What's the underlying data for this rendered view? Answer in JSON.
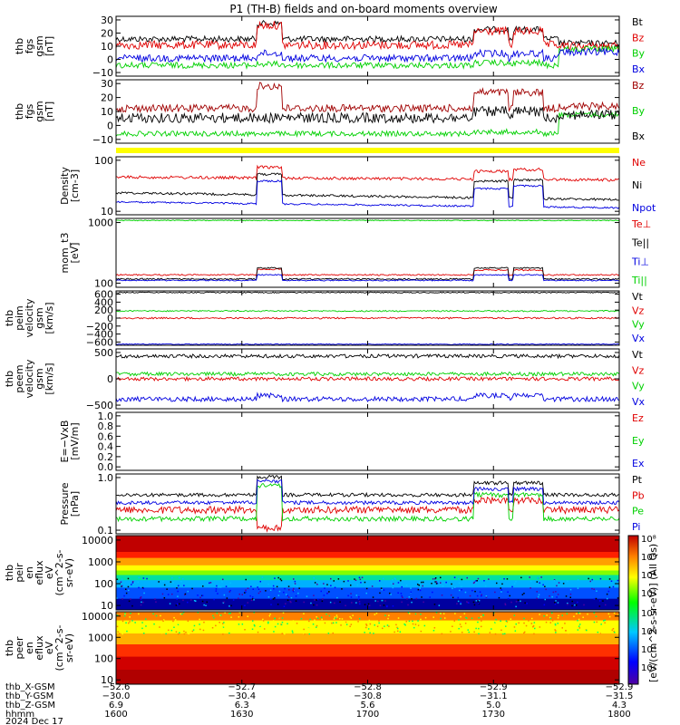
{
  "title": "P1  (TH-B) fields and on-board moments overview",
  "colors": {
    "black": "#000000",
    "red": "#e00000",
    "darkred": "#a00000",
    "green": "#00d000",
    "blue": "#0000e0",
    "yellow": "#ffff00"
  },
  "chart_data": [
    {
      "type": "line",
      "ylabel_lines": [
        "thb",
        "fgs",
        "gsm",
        "[nT]"
      ],
      "ylim": [
        -15,
        32
      ],
      "yticks": [
        "30",
        "20",
        "10",
        "0",
        "−10"
      ],
      "series": [
        {
          "name": "Bt",
          "color": "black"
        },
        {
          "name": "Bz",
          "color": "red"
        },
        {
          "name": "By",
          "color": "green"
        },
        {
          "name": "Bx",
          "color": "blue"
        }
      ]
    },
    {
      "type": "line",
      "ylabel_lines": [
        "thb",
        "fgs",
        "gsm",
        "[nT]"
      ],
      "ylim": [
        -20,
        32
      ],
      "yticks": [
        "30",
        "20",
        "10",
        "0",
        "−10"
      ],
      "series": [
        {
          "name": "Bz",
          "color": "darkred"
        },
        {
          "name": "By",
          "color": "green"
        },
        {
          "name": "Bx",
          "color": "black"
        }
      ]
    },
    {
      "type": "line",
      "ylabel_lines": [
        "Density",
        "[cm-3]"
      ],
      "yscale": "log",
      "yticks": [
        "100",
        "10"
      ],
      "series": [
        {
          "name": "Ne",
          "color": "red"
        },
        {
          "name": "Ni",
          "color": "black"
        },
        {
          "name": "Npot",
          "color": "blue"
        }
      ]
    },
    {
      "type": "line",
      "ylabel_lines": [
        "mom_t3",
        "[eV]"
      ],
      "yscale": "log",
      "yticks": [
        "1000",
        "100"
      ],
      "series": [
        {
          "name": "Te⊥",
          "color": "red"
        },
        {
          "name": "Te||",
          "color": "black"
        },
        {
          "name": "Ti⊥",
          "color": "blue"
        },
        {
          "name": "Ti||",
          "color": "green"
        }
      ]
    },
    {
      "type": "line",
      "ylabel_lines": [
        "thb",
        "peim",
        "velocity",
        "gsm",
        "[km/s]"
      ],
      "ylim": [
        -650,
        650
      ],
      "yticks": [
        "600",
        "400",
        "200",
        "0",
        "−200",
        "−400",
        "−600"
      ],
      "series": [
        {
          "name": "Vt",
          "color": "black"
        },
        {
          "name": "Vz",
          "color": "red"
        },
        {
          "name": "Vy",
          "color": "green"
        },
        {
          "name": "Vx",
          "color": "blue"
        }
      ]
    },
    {
      "type": "line",
      "ylabel_lines": [
        "thb",
        "peem",
        "velocity",
        "gsm",
        "[km/s]"
      ],
      "ylim": [
        -700,
        800
      ],
      "yticks": [
        "500",
        "0",
        "−500"
      ],
      "series": [
        {
          "name": "Vt",
          "color": "black"
        },
        {
          "name": "Vz",
          "color": "red"
        },
        {
          "name": "Vy",
          "color": "green"
        },
        {
          "name": "Vx",
          "color": "blue"
        }
      ]
    },
    {
      "type": "line",
      "ylabel_lines": [
        "E=−VxB",
        "[mV/m]"
      ],
      "ylim": [
        0,
        1.0
      ],
      "yticks": [
        "1.0",
        "0.8",
        "0.6",
        "0.4",
        "0.2",
        "0.0"
      ],
      "series": [
        {
          "name": "Ez",
          "color": "red"
        },
        {
          "name": "Ey",
          "color": "green"
        },
        {
          "name": "Ex",
          "color": "blue"
        }
      ]
    },
    {
      "type": "line",
      "ylabel_lines": [
        "Pressure",
        "[nPa]"
      ],
      "yscale": "log",
      "yticks": [
        "1.0",
        "0.1"
      ],
      "series": [
        {
          "name": "Pt",
          "color": "black"
        },
        {
          "name": "Pb",
          "color": "red"
        },
        {
          "name": "Pe",
          "color": "green"
        },
        {
          "name": "Pi",
          "color": "blue"
        }
      ]
    },
    {
      "type": "heatmap",
      "ylabel_lines": [
        "thb",
        "peir",
        "en",
        "eflux",
        "eV",
        "(cm^2-s-",
        "sr-eV)"
      ],
      "yscale": "log",
      "yticks": [
        "10000",
        "1000",
        "100",
        "10"
      ]
    },
    {
      "type": "heatmap",
      "ylabel_lines": [
        "thb",
        "peer",
        "en",
        "eflux",
        "eV",
        "(cm^2-s-",
        "sr-eV)"
      ],
      "yscale": "log",
      "yticks": [
        "10000",
        "1000",
        "100",
        "10"
      ]
    }
  ],
  "colorbar": {
    "top_ticks": [
      "10⁸",
      "10⁶",
      "10⁴",
      "10²"
    ],
    "bottom_ticks": [
      "10⁸",
      "10⁶",
      "10⁴",
      "10²"
    ],
    "label": "[eV/(cm^2-s-sr-eV)] (All Qs)"
  },
  "time_axis": {
    "row_labels": [
      "thb_X-GSM",
      "thb_Y-GSM",
      "thb_Z-GSM",
      "hhmm",
      "2024 Dec 17"
    ],
    "ticks": [
      {
        "x": "−52.6",
        "y": "−30.0",
        "z": "6.9",
        "hhmm": "1600"
      },
      {
        "x": "−52.7",
        "y": "−30.4",
        "z": "6.3",
        "hhmm": "1630"
      },
      {
        "x": "−52.8",
        "y": "−30.8",
        "z": "5.6",
        "hhmm": "1700"
      },
      {
        "x": "−52.9",
        "y": "−31.1",
        "z": "5.0",
        "hhmm": "1730"
      },
      {
        "x": "−52.9",
        "y": "−31.5",
        "z": "4.3",
        "hhmm": "1800"
      }
    ]
  }
}
